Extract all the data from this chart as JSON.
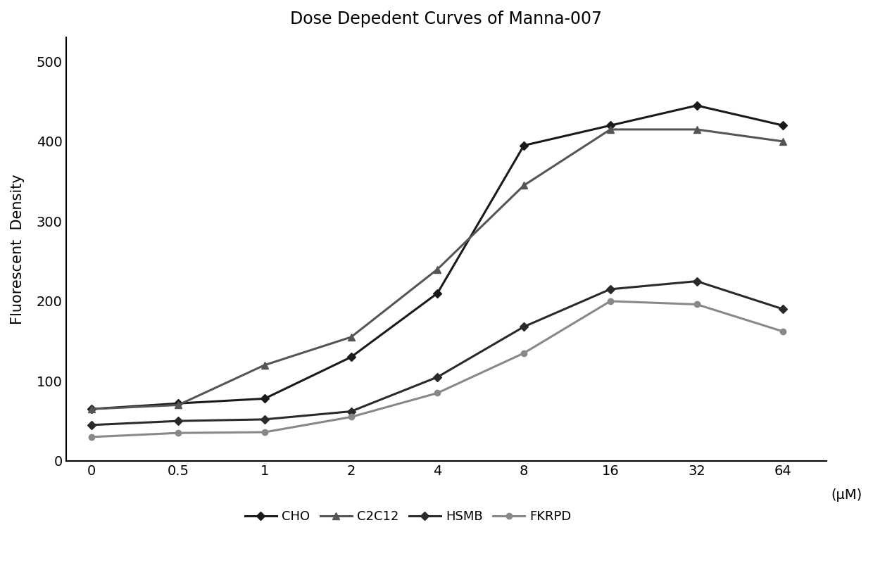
{
  "title": "Dose Depedent Curves of Manna-007",
  "ylabel": "Fluorescent  Density",
  "xlabel_unit": "(μM)",
  "x_labels": [
    "0",
    "0.5",
    "1",
    "2",
    "4",
    "8",
    "16",
    "32",
    "64"
  ],
  "series": [
    {
      "name": "CHO",
      "values": [
        65,
        72,
        78,
        130,
        210,
        395,
        420,
        445,
        420
      ],
      "color": "#1a1a1a",
      "marker": "D",
      "linewidth": 2.2,
      "markersize": 6
    },
    {
      "name": "C2C12",
      "values": [
        65,
        70,
        120,
        155,
        240,
        345,
        415,
        415,
        400
      ],
      "color": "#555555",
      "marker": "^",
      "linewidth": 2.2,
      "markersize": 7
    },
    {
      "name": "HSMB",
      "values": [
        45,
        50,
        52,
        62,
        105,
        168,
        215,
        225,
        190
      ],
      "color": "#2a2a2a",
      "marker": "D",
      "linewidth": 2.2,
      "markersize": 6
    },
    {
      "name": "FKRPD",
      "values": [
        30,
        35,
        36,
        55,
        85,
        135,
        200,
        196,
        162
      ],
      "color": "#888888",
      "marker": "o",
      "linewidth": 2.2,
      "markersize": 6
    }
  ],
  "ylim": [
    0,
    530
  ],
  "yticks": [
    0,
    100,
    200,
    300,
    400,
    500
  ],
  "background_color": "#ffffff",
  "title_fontsize": 17,
  "axis_label_fontsize": 15,
  "tick_fontsize": 14,
  "legend_fontsize": 13
}
